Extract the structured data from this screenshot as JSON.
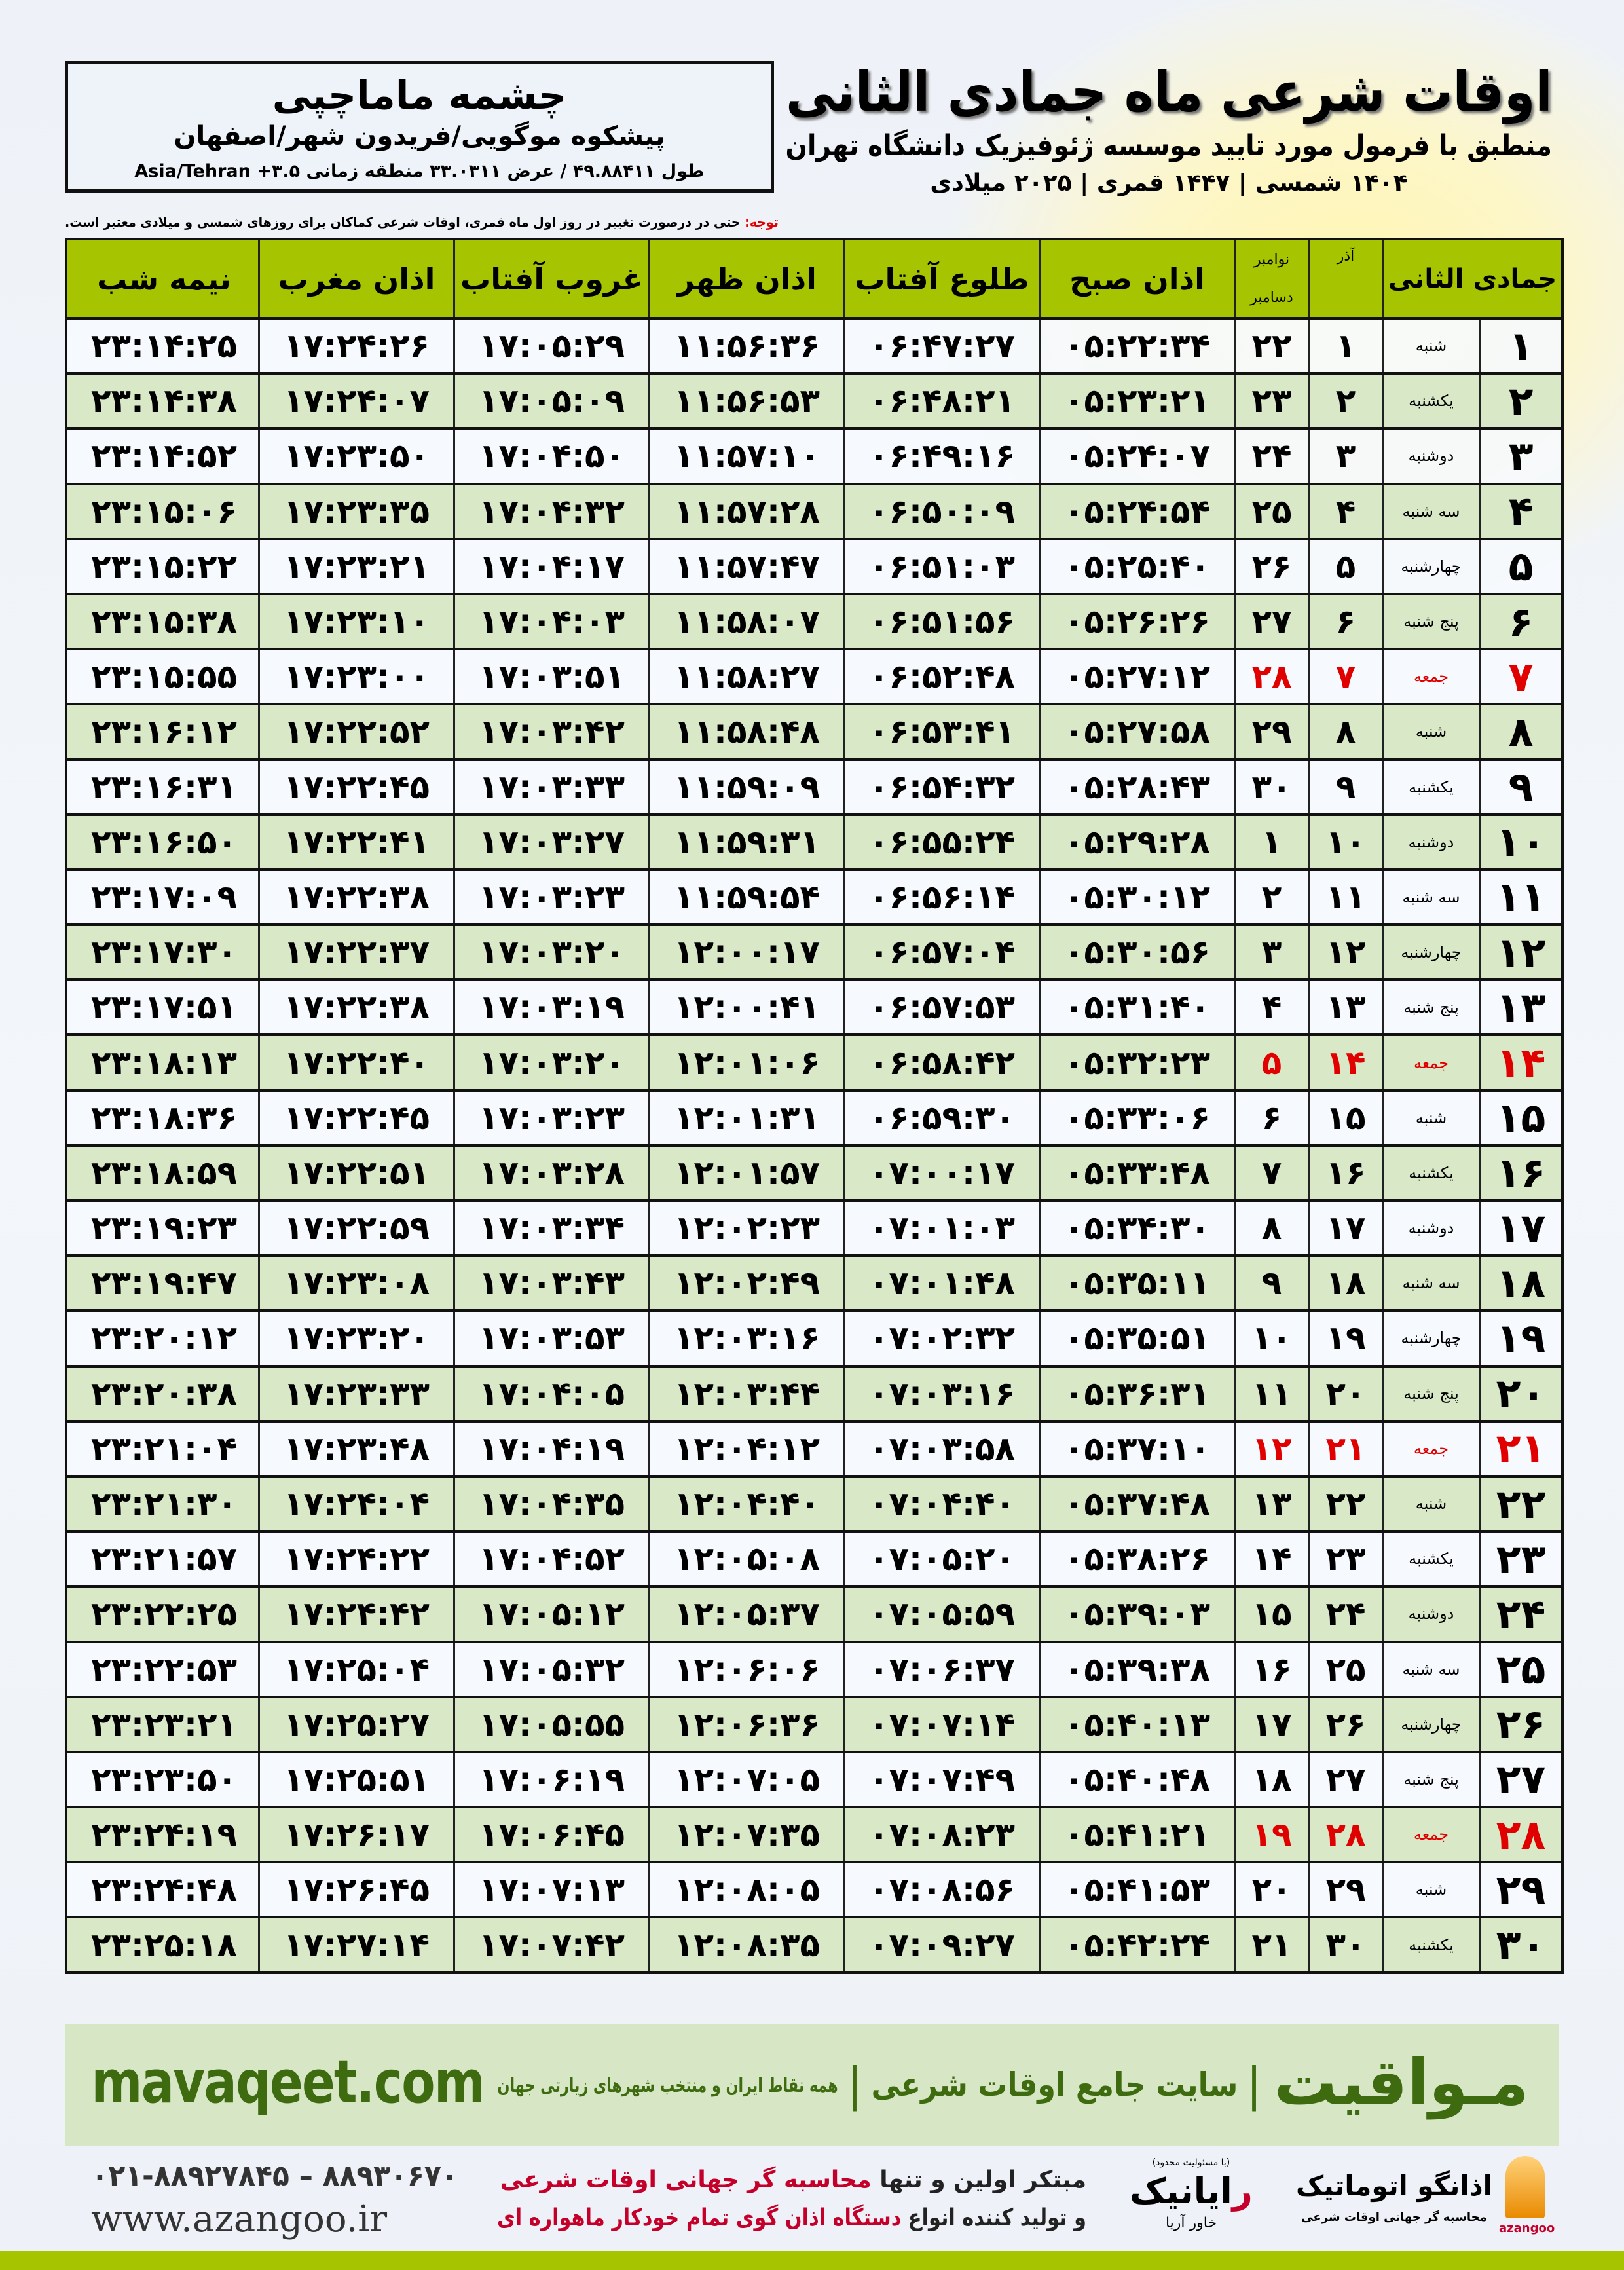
{
  "location": {
    "name": "چشمه ماماچپی",
    "region": "پیشکوه موگویی/فریدون شهر/اصفهان",
    "coords": "طول ۴۹.۸۸۴۱۱ / عرض ۳۳.۰۳۱۱ منطقه زمانی ۳.۵+ Asia/Tehran"
  },
  "header": {
    "title": "اوقات شرعی ماه جمادی الثانی",
    "subtitle": "منطبق با فرمول مورد تایید موسسه ژئوفیزیک دانشگاه تهران",
    "date_line": "۱۴۰۴ شمسی | ۱۴۴۷ قمری | ۲۰۲۵ میلادی"
  },
  "note": {
    "label": "توجه:",
    "text": " حتی در درصورت تغییر در روز اول ماه قمری، اوقات شرعی کماکان برای روزهای شمسی و میلادی معتبر است."
  },
  "table": {
    "headers": {
      "hijri": "جمادی الثانی",
      "azar": "آذر",
      "nov": "نوامبر",
      "dec": "دسامبر",
      "fajr": "اذان صبح",
      "sunrise": "طلوع آفتاب",
      "dhuhr": "اذان ظهر",
      "sunset": "غروب آفتاب",
      "maghrib": "اذان مغرب",
      "midnight": "نیمه شب"
    },
    "holiday_color": "#e00000",
    "header_color": "#a6c400",
    "alt_row_color": "#d9e8c7",
    "rows": [
      {
        "holiday": false,
        "cells": [
          "۱",
          "شنبه",
          "۱",
          "۲۲",
          "۰۵:۲۲:۳۴",
          "۰۶:۴۷:۲۷",
          "۱۱:۵۶:۳۶",
          "۱۷:۰۵:۲۹",
          "۱۷:۲۴:۲۶",
          "۲۳:۱۴:۲۵"
        ]
      },
      {
        "holiday": false,
        "cells": [
          "۲",
          "یکشنبه",
          "۲",
          "۲۳",
          "۰۵:۲۳:۲۱",
          "۰۶:۴۸:۲۱",
          "۱۱:۵۶:۵۳",
          "۱۷:۰۵:۰۹",
          "۱۷:۲۴:۰۷",
          "۲۳:۱۴:۳۸"
        ]
      },
      {
        "holiday": false,
        "cells": [
          "۳",
          "دوشنبه",
          "۳",
          "۲۴",
          "۰۵:۲۴:۰۷",
          "۰۶:۴۹:۱۶",
          "۱۱:۵۷:۱۰",
          "۱۷:۰۴:۵۰",
          "۱۷:۲۳:۵۰",
          "۲۳:۱۴:۵۲"
        ]
      },
      {
        "holiday": false,
        "cells": [
          "۴",
          "سه شنبه",
          "۴",
          "۲۵",
          "۰۵:۲۴:۵۴",
          "۰۶:۵۰:۰۹",
          "۱۱:۵۷:۲۸",
          "۱۷:۰۴:۳۲",
          "۱۷:۲۳:۳۵",
          "۲۳:۱۵:۰۶"
        ]
      },
      {
        "holiday": false,
        "cells": [
          "۵",
          "چهارشنبه",
          "۵",
          "۲۶",
          "۰۵:۲۵:۴۰",
          "۰۶:۵۱:۰۳",
          "۱۱:۵۷:۴۷",
          "۱۷:۰۴:۱۷",
          "۱۷:۲۳:۲۱",
          "۲۳:۱۵:۲۲"
        ]
      },
      {
        "holiday": false,
        "cells": [
          "۶",
          "پنج شنبه",
          "۶",
          "۲۷",
          "۰۵:۲۶:۲۶",
          "۰۶:۵۱:۵۶",
          "۱۱:۵۸:۰۷",
          "۱۷:۰۴:۰۳",
          "۱۷:۲۳:۱۰",
          "۲۳:۱۵:۳۸"
        ]
      },
      {
        "holiday": true,
        "cells": [
          "۷",
          "جمعه",
          "۷",
          "۲۸",
          "۰۵:۲۷:۱۲",
          "۰۶:۵۲:۴۸",
          "۱۱:۵۸:۲۷",
          "۱۷:۰۳:۵۱",
          "۱۷:۲۳:۰۰",
          "۲۳:۱۵:۵۵"
        ]
      },
      {
        "holiday": false,
        "cells": [
          "۸",
          "شنبه",
          "۸",
          "۲۹",
          "۰۵:۲۷:۵۸",
          "۰۶:۵۳:۴۱",
          "۱۱:۵۸:۴۸",
          "۱۷:۰۳:۴۲",
          "۱۷:۲۲:۵۲",
          "۲۳:۱۶:۱۲"
        ]
      },
      {
        "holiday": false,
        "cells": [
          "۹",
          "یکشنبه",
          "۹",
          "۳۰",
          "۰۵:۲۸:۴۳",
          "۰۶:۵۴:۳۲",
          "۱۱:۵۹:۰۹",
          "۱۷:۰۳:۳۳",
          "۱۷:۲۲:۴۵",
          "۲۳:۱۶:۳۱"
        ]
      },
      {
        "holiday": false,
        "cells": [
          "۱۰",
          "دوشنبه",
          "۱۰",
          "۱",
          "۰۵:۲۹:۲۸",
          "۰۶:۵۵:۲۴",
          "۱۱:۵۹:۳۱",
          "۱۷:۰۳:۲۷",
          "۱۷:۲۲:۴۱",
          "۲۳:۱۶:۵۰"
        ]
      },
      {
        "holiday": false,
        "cells": [
          "۱۱",
          "سه شنبه",
          "۱۱",
          "۲",
          "۰۵:۳۰:۱۲",
          "۰۶:۵۶:۱۴",
          "۱۱:۵۹:۵۴",
          "۱۷:۰۳:۲۳",
          "۱۷:۲۲:۳۸",
          "۲۳:۱۷:۰۹"
        ]
      },
      {
        "holiday": false,
        "cells": [
          "۱۲",
          "چهارشنبه",
          "۱۲",
          "۳",
          "۰۵:۳۰:۵۶",
          "۰۶:۵۷:۰۴",
          "۱۲:۰۰:۱۷",
          "۱۷:۰۳:۲۰",
          "۱۷:۲۲:۳۷",
          "۲۳:۱۷:۳۰"
        ]
      },
      {
        "holiday": false,
        "cells": [
          "۱۳",
          "پنج شنبه",
          "۱۳",
          "۴",
          "۰۵:۳۱:۴۰",
          "۰۶:۵۷:۵۳",
          "۱۲:۰۰:۴۱",
          "۱۷:۰۳:۱۹",
          "۱۷:۲۲:۳۸",
          "۲۳:۱۷:۵۱"
        ]
      },
      {
        "holiday": true,
        "cells": [
          "۱۴",
          "جمعه",
          "۱۴",
          "۵",
          "۰۵:۳۲:۲۳",
          "۰۶:۵۸:۴۲",
          "۱۲:۰۱:۰۶",
          "۱۷:۰۳:۲۰",
          "۱۷:۲۲:۴۰",
          "۲۳:۱۸:۱۳"
        ]
      },
      {
        "holiday": false,
        "cells": [
          "۱۵",
          "شنبه",
          "۱۵",
          "۶",
          "۰۵:۳۳:۰۶",
          "۰۶:۵۹:۳۰",
          "۱۲:۰۱:۳۱",
          "۱۷:۰۳:۲۳",
          "۱۷:۲۲:۴۵",
          "۲۳:۱۸:۳۶"
        ]
      },
      {
        "holiday": false,
        "cells": [
          "۱۶",
          "یکشنبه",
          "۱۶",
          "۷",
          "۰۵:۳۳:۴۸",
          "۰۷:۰۰:۱۷",
          "۱۲:۰۱:۵۷",
          "۱۷:۰۳:۲۸",
          "۱۷:۲۲:۵۱",
          "۲۳:۱۸:۵۹"
        ]
      },
      {
        "holiday": false,
        "cells": [
          "۱۷",
          "دوشنبه",
          "۱۷",
          "۸",
          "۰۵:۳۴:۳۰",
          "۰۷:۰۱:۰۳",
          "۱۲:۰۲:۲۳",
          "۱۷:۰۳:۳۴",
          "۱۷:۲۲:۵۹",
          "۲۳:۱۹:۲۳"
        ]
      },
      {
        "holiday": false,
        "cells": [
          "۱۸",
          "سه شنبه",
          "۱۸",
          "۹",
          "۰۵:۳۵:۱۱",
          "۰۷:۰۱:۴۸",
          "۱۲:۰۲:۴۹",
          "۱۷:۰۳:۴۳",
          "۱۷:۲۳:۰۸",
          "۲۳:۱۹:۴۷"
        ]
      },
      {
        "holiday": false,
        "cells": [
          "۱۹",
          "چهارشنبه",
          "۱۹",
          "۱۰",
          "۰۵:۳۵:۵۱",
          "۰۷:۰۲:۳۲",
          "۱۲:۰۳:۱۶",
          "۱۷:۰۳:۵۳",
          "۱۷:۲۳:۲۰",
          "۲۳:۲۰:۱۲"
        ]
      },
      {
        "holiday": false,
        "cells": [
          "۲۰",
          "پنج شنبه",
          "۲۰",
          "۱۱",
          "۰۵:۳۶:۳۱",
          "۰۷:۰۳:۱۶",
          "۱۲:۰۳:۴۴",
          "۱۷:۰۴:۰۵",
          "۱۷:۲۳:۳۳",
          "۲۳:۲۰:۳۸"
        ]
      },
      {
        "holiday": true,
        "cells": [
          "۲۱",
          "جمعه",
          "۲۱",
          "۱۲",
          "۰۵:۳۷:۱۰",
          "۰۷:۰۳:۵۸",
          "۱۲:۰۴:۱۲",
          "۱۷:۰۴:۱۹",
          "۱۷:۲۳:۴۸",
          "۲۳:۲۱:۰۴"
        ]
      },
      {
        "holiday": false,
        "cells": [
          "۲۲",
          "شنبه",
          "۲۲",
          "۱۳",
          "۰۵:۳۷:۴۸",
          "۰۷:۰۴:۴۰",
          "۱۲:۰۴:۴۰",
          "۱۷:۰۴:۳۵",
          "۱۷:۲۴:۰۴",
          "۲۳:۲۱:۳۰"
        ]
      },
      {
        "holiday": false,
        "cells": [
          "۲۳",
          "یکشنبه",
          "۲۳",
          "۱۴",
          "۰۵:۳۸:۲۶",
          "۰۷:۰۵:۲۰",
          "۱۲:۰۵:۰۸",
          "۱۷:۰۴:۵۲",
          "۱۷:۲۴:۲۲",
          "۲۳:۲۱:۵۷"
        ]
      },
      {
        "holiday": false,
        "cells": [
          "۲۴",
          "دوشنبه",
          "۲۴",
          "۱۵",
          "۰۵:۳۹:۰۳",
          "۰۷:۰۵:۵۹",
          "۱۲:۰۵:۳۷",
          "۱۷:۰۵:۱۲",
          "۱۷:۲۴:۴۲",
          "۲۳:۲۲:۲۵"
        ]
      },
      {
        "holiday": false,
        "cells": [
          "۲۵",
          "سه شنبه",
          "۲۵",
          "۱۶",
          "۰۵:۳۹:۳۸",
          "۰۷:۰۶:۳۷",
          "۱۲:۰۶:۰۶",
          "۱۷:۰۵:۳۲",
          "۱۷:۲۵:۰۴",
          "۲۳:۲۲:۵۳"
        ]
      },
      {
        "holiday": false,
        "cells": [
          "۲۶",
          "چهارشنبه",
          "۲۶",
          "۱۷",
          "۰۵:۴۰:۱۳",
          "۰۷:۰۷:۱۴",
          "۱۲:۰۶:۳۶",
          "۱۷:۰۵:۵۵",
          "۱۷:۲۵:۲۷",
          "۲۳:۲۳:۲۱"
        ]
      },
      {
        "holiday": false,
        "cells": [
          "۲۷",
          "پنج شنبه",
          "۲۷",
          "۱۸",
          "۰۵:۴۰:۴۸",
          "۰۷:۰۷:۴۹",
          "۱۲:۰۷:۰۵",
          "۱۷:۰۶:۱۹",
          "۱۷:۲۵:۵۱",
          "۲۳:۲۳:۵۰"
        ]
      },
      {
        "holiday": true,
        "cells": [
          "۲۸",
          "جمعه",
          "۲۸",
          "۱۹",
          "۰۵:۴۱:۲۱",
          "۰۷:۰۸:۲۳",
          "۱۲:۰۷:۳۵",
          "۱۷:۰۶:۴۵",
          "۱۷:۲۶:۱۷",
          "۲۳:۲۴:۱۹"
        ]
      },
      {
        "holiday": false,
        "cells": [
          "۲۹",
          "شنبه",
          "۲۹",
          "۲۰",
          "۰۵:۴۱:۵۳",
          "۰۷:۰۸:۵۶",
          "۱۲:۰۸:۰۵",
          "۱۷:۰۷:۱۳",
          "۱۷:۲۶:۴۵",
          "۲۳:۲۴:۴۸"
        ]
      },
      {
        "holiday": false,
        "cells": [
          "۳۰",
          "یکشنبه",
          "۳۰",
          "۲۱",
          "۰۵:۴۲:۲۴",
          "۰۷:۰۹:۲۷",
          "۱۲:۰۸:۳۵",
          "۱۷:۰۷:۴۲",
          "۱۷:۲۷:۱۴",
          "۲۳:۲۵:۱۸"
        ]
      }
    ]
  },
  "banner": {
    "brand": "مـواقیت",
    "separator": "|",
    "tagline": "سایت جامع اوقات شرعی",
    "sub": "همه نقاط ایران و منتخب شهرهای زیارتی جهان",
    "url": "mavaqeet.com",
    "color": "#3e6b10"
  },
  "footer": {
    "phones": "۰۲۱-۸۸۹۲۷۸۴۵ – ۸۸۹۳۰۶۷۰",
    "website": "www.azangoo.ir",
    "line1_prefix": "مبتکر اولین و تنها ",
    "line1_highlight": "محاسبه گر جهانی اوقات شرعی",
    "line2_prefix": "و تولید کننده انواع ",
    "line2_highlight": "دستگاه اذان گوی تمام خودکار ماهواره ای",
    "logo_rayanik": {
      "note": "(با مسئولیت محدود)",
      "first": "ر",
      "rest": "ایانیک",
      "side": "خاور آریا"
    },
    "logo_azangoo": {
      "name": "اذانگو اتوماتیک",
      "tagline": "محاسبه گر جهانی اوقات شرعی",
      "latin": "azangoo"
    }
  }
}
